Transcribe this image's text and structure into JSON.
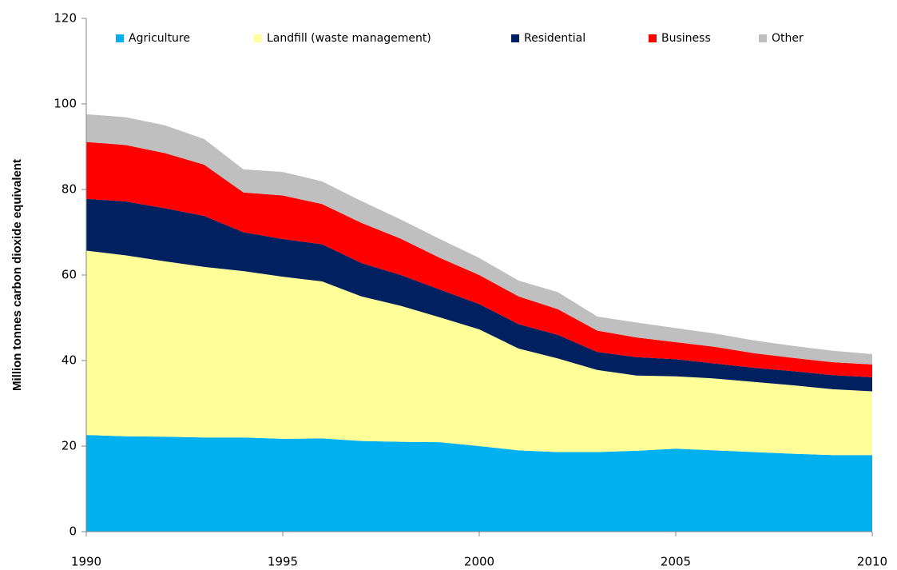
{
  "chart_data": {
    "type": "stacked-area",
    "y_label": "Million  tonnes carbon dioxide  equivalent",
    "x": [
      1990,
      1991,
      1992,
      1993,
      1994,
      1995,
      1996,
      1997,
      1998,
      1999,
      2000,
      2001,
      2002,
      2003,
      2004,
      2005,
      2006,
      2007,
      2008,
      2009,
      2010
    ],
    "series": [
      {
        "name": "Agriculture",
        "color": "#00b0f0",
        "values": [
          22.6,
          22.3,
          22.2,
          22.0,
          22.0,
          21.7,
          21.8,
          21.2,
          21.0,
          20.9,
          20.0,
          19.0,
          18.6,
          18.6,
          18.9,
          19.4,
          19.0,
          18.6,
          18.2,
          17.9,
          17.9
        ]
      },
      {
        "name": "Landfill (waste management)",
        "color": "#ffff99",
        "values": [
          43.1,
          42.3,
          41.0,
          39.9,
          38.9,
          37.9,
          36.7,
          33.8,
          31.8,
          29.2,
          27.3,
          23.8,
          21.9,
          19.2,
          17.6,
          16.9,
          16.8,
          16.4,
          16.0,
          15.4,
          14.9
        ]
      },
      {
        "name": "Residential",
        "color": "#002060",
        "values": [
          12.1,
          12.6,
          12.4,
          11.9,
          9.1,
          8.8,
          8.7,
          7.8,
          7.2,
          6.5,
          5.9,
          5.7,
          5.5,
          4.2,
          4.3,
          4.0,
          3.5,
          3.3,
          3.3,
          3.3,
          3.3
        ]
      },
      {
        "name": "Business",
        "color": "#ff0000",
        "values": [
          13.3,
          13.2,
          12.9,
          12.0,
          9.3,
          10.2,
          9.4,
          9.4,
          8.5,
          7.4,
          6.8,
          6.5,
          6.0,
          5.0,
          4.6,
          4.0,
          3.9,
          3.4,
          3.1,
          3.0,
          3.0
        ]
      },
      {
        "name": "Other",
        "color": "#bfbfbf",
        "values": [
          6.5,
          6.5,
          6.5,
          6.0,
          5.4,
          5.5,
          5.3,
          5.1,
          4.5,
          4.4,
          4.0,
          3.7,
          4.0,
          3.3,
          3.5,
          3.3,
          3.1,
          3.0,
          2.8,
          2.7,
          2.4
        ]
      }
    ],
    "xlim": [
      1990,
      2010
    ],
    "xticks": [
      1990,
      1995,
      2000,
      2005,
      2010
    ],
    "ylim": [
      0,
      120
    ],
    "yticks": [
      0,
      20,
      40,
      60,
      80,
      100,
      120
    ],
    "legend": "top"
  }
}
